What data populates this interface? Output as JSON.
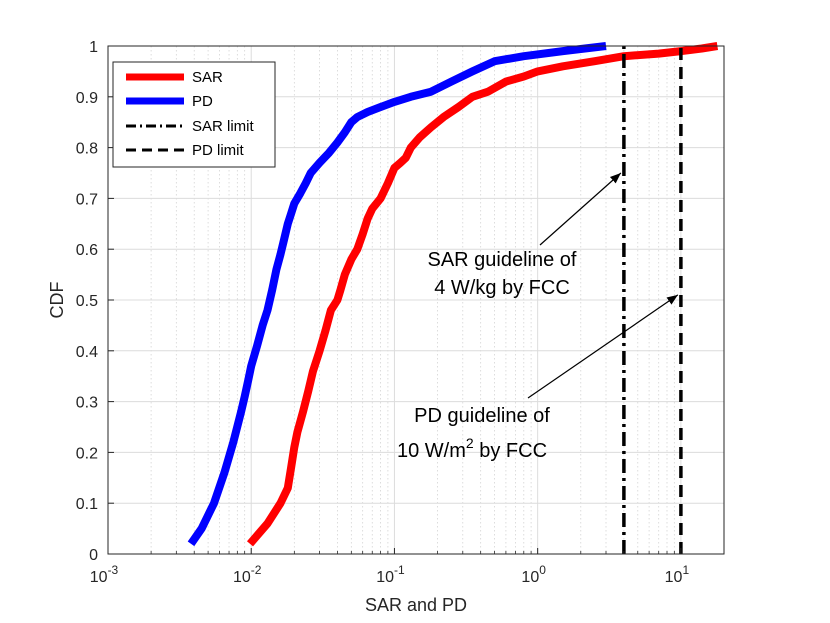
{
  "chart_data": {
    "type": "line",
    "xscale": "log",
    "xlim": [
      0.001,
      20
    ],
    "ylim": [
      0,
      1
    ],
    "xlabel": "SAR and PD",
    "ylabel": "CDF",
    "grid": true,
    "xticks": [
      {
        "value": 0.001,
        "base": "10",
        "exp": "-3"
      },
      {
        "value": 0.01,
        "base": "10",
        "exp": "-2"
      },
      {
        "value": 0.1,
        "base": "10",
        "exp": "-1"
      },
      {
        "value": 1,
        "base": "10",
        "exp": "0"
      },
      {
        "value": 10,
        "base": "10",
        "exp": "1"
      }
    ],
    "yticks": [
      0,
      0.1,
      0.2,
      0.3,
      0.4,
      0.5,
      0.6,
      0.7,
      0.8,
      0.9,
      1
    ],
    "ytick_labels": [
      "0",
      "0.1",
      "0.2",
      "0.3",
      "0.4",
      "0.5",
      "0.6",
      "0.7",
      "0.8",
      "0.9",
      "1"
    ],
    "legend_position": "top-left",
    "series": [
      {
        "name": "SAR",
        "color": "#ff0000",
        "style": "solid",
        "x": [
          0.0098,
          0.013,
          0.016,
          0.018,
          0.019,
          0.02,
          0.021,
          0.023,
          0.025,
          0.027,
          0.03,
          0.033,
          0.036,
          0.04,
          0.042,
          0.045,
          0.05,
          0.055,
          0.06,
          0.065,
          0.07,
          0.08,
          0.09,
          0.1,
          0.11,
          0.12,
          0.13,
          0.15,
          0.18,
          0.22,
          0.28,
          0.35,
          0.45,
          0.6,
          0.8,
          1.0,
          1.5,
          2.5,
          4.0,
          7.0,
          10.0,
          14.0,
          18.0
        ],
        "y": [
          0.02,
          0.06,
          0.1,
          0.13,
          0.17,
          0.21,
          0.24,
          0.28,
          0.32,
          0.36,
          0.4,
          0.44,
          0.48,
          0.5,
          0.52,
          0.55,
          0.58,
          0.6,
          0.63,
          0.66,
          0.68,
          0.7,
          0.73,
          0.76,
          0.77,
          0.78,
          0.8,
          0.82,
          0.84,
          0.86,
          0.88,
          0.9,
          0.91,
          0.93,
          0.94,
          0.95,
          0.96,
          0.97,
          0.98,
          0.985,
          0.99,
          0.995,
          1.0
        ]
      },
      {
        "name": "PD",
        "color": "#0000ff",
        "style": "solid",
        "x": [
          0.0038,
          0.0045,
          0.0055,
          0.0065,
          0.0075,
          0.0085,
          0.009,
          0.0095,
          0.01,
          0.011,
          0.012,
          0.013,
          0.014,
          0.015,
          0.016,
          0.017,
          0.018,
          0.019,
          0.02,
          0.022,
          0.024,
          0.026,
          0.03,
          0.035,
          0.04,
          0.045,
          0.05,
          0.055,
          0.065,
          0.08,
          0.1,
          0.13,
          0.18,
          0.25,
          0.35,
          0.5,
          0.8,
          1.5,
          3.0
        ],
        "y": [
          0.02,
          0.05,
          0.1,
          0.16,
          0.22,
          0.28,
          0.31,
          0.34,
          0.37,
          0.41,
          0.45,
          0.48,
          0.52,
          0.56,
          0.59,
          0.62,
          0.65,
          0.67,
          0.69,
          0.71,
          0.73,
          0.75,
          0.77,
          0.79,
          0.81,
          0.83,
          0.85,
          0.86,
          0.87,
          0.88,
          0.89,
          0.9,
          0.91,
          0.93,
          0.95,
          0.97,
          0.98,
          0.99,
          1.0
        ]
      },
      {
        "name": "SAR limit",
        "color": "#000000",
        "style": "dashdot",
        "x": [
          4,
          4
        ],
        "y": [
          0,
          1
        ]
      },
      {
        "name": "PD limit",
        "color": "#000000",
        "style": "dashed",
        "x": [
          10,
          10
        ],
        "y": [
          0,
          1
        ]
      }
    ],
    "annotations": [
      {
        "line1": "SAR guideline of",
        "line2": "4 W/kg by FCC",
        "arrow_to_x": 4,
        "arrow_to_y": 0.75
      },
      {
        "line1": "PD guideline of",
        "line2_prefix": "10 W/m",
        "line2_sup": "2",
        "line2_suffix": " by FCC",
        "arrow_to_x": 10,
        "arrow_to_y": 0.51
      }
    ]
  }
}
